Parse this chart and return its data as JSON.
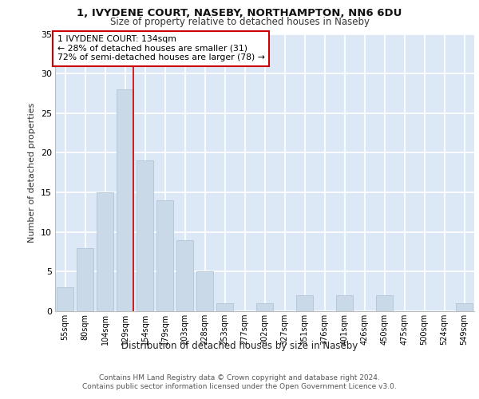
{
  "title_line1": "1, IVYDENE COURT, NASEBY, NORTHAMPTON, NN6 6DU",
  "title_line2": "Size of property relative to detached houses in Naseby",
  "xlabel": "Distribution of detached houses by size in Naseby",
  "ylabel": "Number of detached properties",
  "bar_labels": [
    "55sqm",
    "80sqm",
    "104sqm",
    "129sqm",
    "154sqm",
    "179sqm",
    "203sqm",
    "228sqm",
    "253sqm",
    "277sqm",
    "302sqm",
    "327sqm",
    "351sqm",
    "376sqm",
    "401sqm",
    "426sqm",
    "450sqm",
    "475sqm",
    "500sqm",
    "524sqm",
    "549sqm"
  ],
  "bar_values": [
    3,
    8,
    15,
    28,
    19,
    14,
    9,
    5,
    1,
    0,
    1,
    0,
    2,
    0,
    2,
    0,
    2,
    0,
    0,
    0,
    1
  ],
  "bar_color": "#c9d9e8",
  "bar_edge_color": "#a8c0d4",
  "bg_color": "#dce8f5",
  "grid_color": "#ffffff",
  "annotation_text": "1 IVYDENE COURT: 134sqm\n← 28% of detached houses are smaller (31)\n72% of semi-detached houses are larger (78) →",
  "annotation_box_color": "#ffffff",
  "annotation_box_edge_color": "#cc0000",
  "red_line_x": 3.42,
  "ylim": [
    0,
    35
  ],
  "yticks": [
    0,
    5,
    10,
    15,
    20,
    25,
    30,
    35
  ],
  "footer_line1": "Contains HM Land Registry data © Crown copyright and database right 2024.",
  "footer_line2": "Contains public sector information licensed under the Open Government Licence v3.0."
}
